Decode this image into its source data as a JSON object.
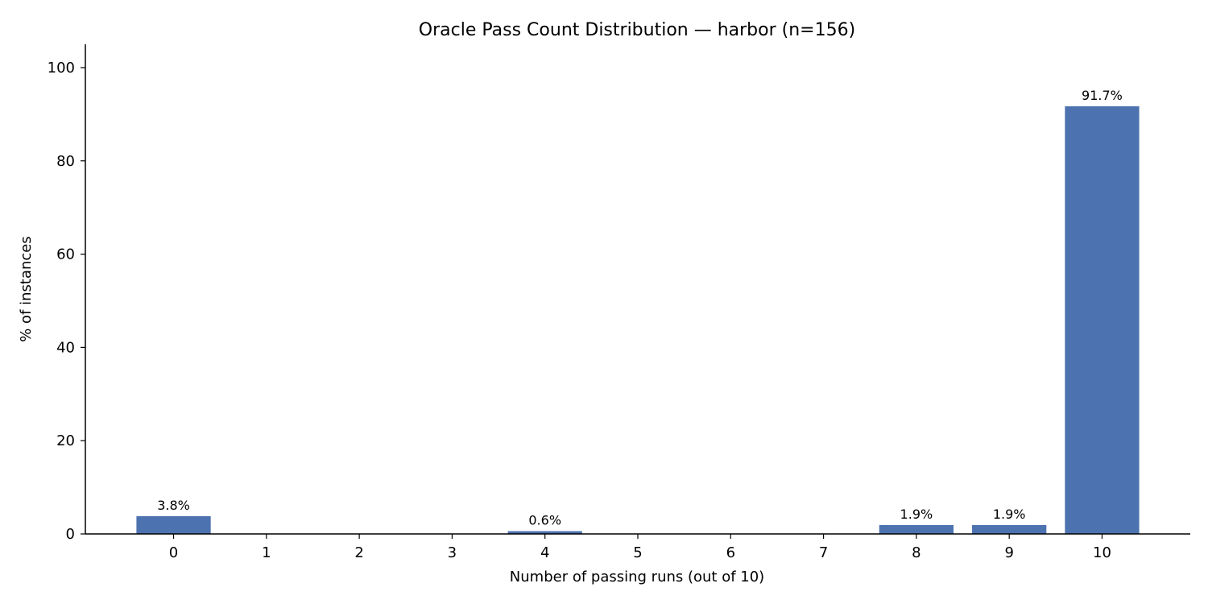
{
  "chart_data": {
    "type": "bar",
    "title": "Oracle Pass Count Distribution — harbor (n=156)",
    "xlabel": "Number of passing runs (out of 10)",
    "ylabel": "% of instances",
    "categories": [
      "0",
      "1",
      "2",
      "3",
      "4",
      "5",
      "6",
      "7",
      "8",
      "9",
      "10"
    ],
    "values": [
      3.8,
      0,
      0,
      0,
      0.6,
      0,
      0,
      0,
      1.9,
      1.9,
      91.7
    ],
    "data_labels": [
      "3.8%",
      "",
      "",
      "",
      "0.6%",
      "",
      "",
      "",
      "1.9%",
      "1.9%",
      "91.7%"
    ],
    "ylim": [
      0,
      105
    ],
    "yticks": [
      0,
      20,
      40,
      60,
      80,
      100
    ],
    "grid": false,
    "bar_color": "#4c72b0"
  }
}
